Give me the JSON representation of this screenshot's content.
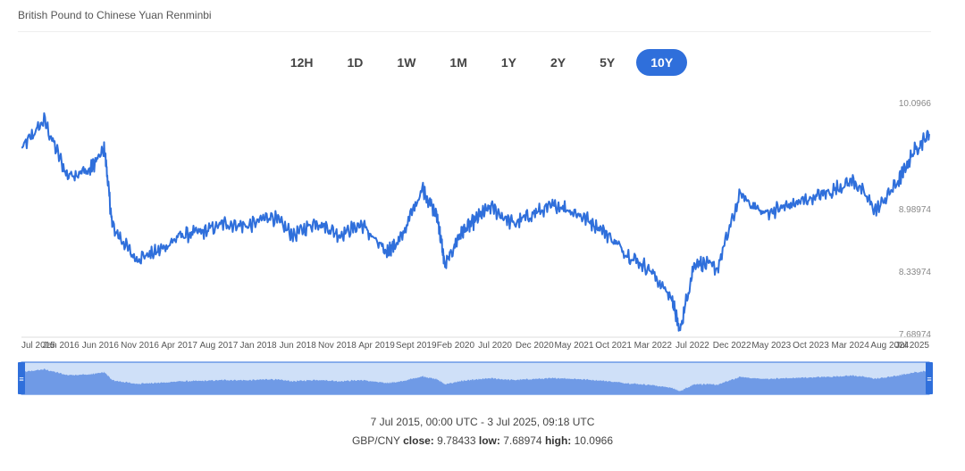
{
  "title": "British Pound to Chinese Yuan Renminbi",
  "ranges": [
    {
      "label": "12H",
      "active": false
    },
    {
      "label": "1D",
      "active": false
    },
    {
      "label": "1W",
      "active": false
    },
    {
      "label": "1M",
      "active": false
    },
    {
      "label": "1Y",
      "active": false
    },
    {
      "label": "2Y",
      "active": false
    },
    {
      "label": "5Y",
      "active": false
    },
    {
      "label": "10Y",
      "active": true
    }
  ],
  "footer": {
    "time_range": "7 Jul 2015, 00:00 UTC - 3 Jul 2025, 09:18 UTC",
    "pair": "GBP/CNY",
    "close_label": "close:",
    "close_value": "9.78433",
    "low_label": "low:",
    "low_value": "7.68974",
    "high_label": "high:",
    "high_value": "10.0966"
  },
  "colors": {
    "line": "#2f6fdb",
    "nav_fill": "#6f9ae6",
    "nav_bg": "#cfe0f8",
    "active_button": "#2f6fdb"
  },
  "chart_data": {
    "type": "line",
    "ylim": [
      7.68974,
      10.0966
    ],
    "y_ticks": [
      "10.0966",
      "8.98974",
      "8.33974",
      "7.68974"
    ],
    "x_tick_labels": [
      "Jul 2015",
      "Jan 2016",
      "Jun 2016",
      "Nov 2016",
      "Apr 2017",
      "Aug 2017",
      "Jan 2018",
      "Jun 2018",
      "Nov 2018",
      "Apr 2019",
      "Sept 2019",
      "Feb 2020",
      "Jul 2020",
      "Dec 2020",
      "May 2021",
      "Oct 2021",
      "Mar 2022",
      "Jul 2022",
      "Dec 2022",
      "May 2023",
      "Oct 2023",
      "Mar 2024",
      "Aug 2024",
      "Jul 2025"
    ],
    "series": [
      {
        "x": [
          "2015-07",
          "2015-10",
          "2016-01",
          "2016-04",
          "2016-06",
          "2016-07",
          "2016-10",
          "2017-01",
          "2017-04",
          "2017-07",
          "2017-10",
          "2018-01",
          "2018-04",
          "2018-07",
          "2018-10",
          "2019-01",
          "2019-04",
          "2019-07",
          "2019-09",
          "2019-12",
          "2020-02",
          "2020-03",
          "2020-05",
          "2020-07",
          "2020-09",
          "2020-12",
          "2021-03",
          "2021-06",
          "2021-09",
          "2021-12",
          "2022-03",
          "2022-06",
          "2022-09",
          "2022-10",
          "2022-12",
          "2023-03",
          "2023-06",
          "2023-09",
          "2023-12",
          "2024-03",
          "2024-06",
          "2024-09",
          "2024-12",
          "2025-03",
          "2025-05",
          "2025-07"
        ],
        "values": [
          9.62,
          9.92,
          9.35,
          9.4,
          9.62,
          8.82,
          8.48,
          8.55,
          8.72,
          8.76,
          8.85,
          8.82,
          8.93,
          8.72,
          8.87,
          8.73,
          8.84,
          8.55,
          8.66,
          9.22,
          8.9,
          8.4,
          8.74,
          8.88,
          9.02,
          8.84,
          8.96,
          9.04,
          8.93,
          8.77,
          8.53,
          8.37,
          8.06,
          7.72,
          8.45,
          8.38,
          9.15,
          8.95,
          9.02,
          9.1,
          9.18,
          9.3,
          8.98,
          9.3,
          9.6,
          9.78
        ]
      }
    ]
  }
}
